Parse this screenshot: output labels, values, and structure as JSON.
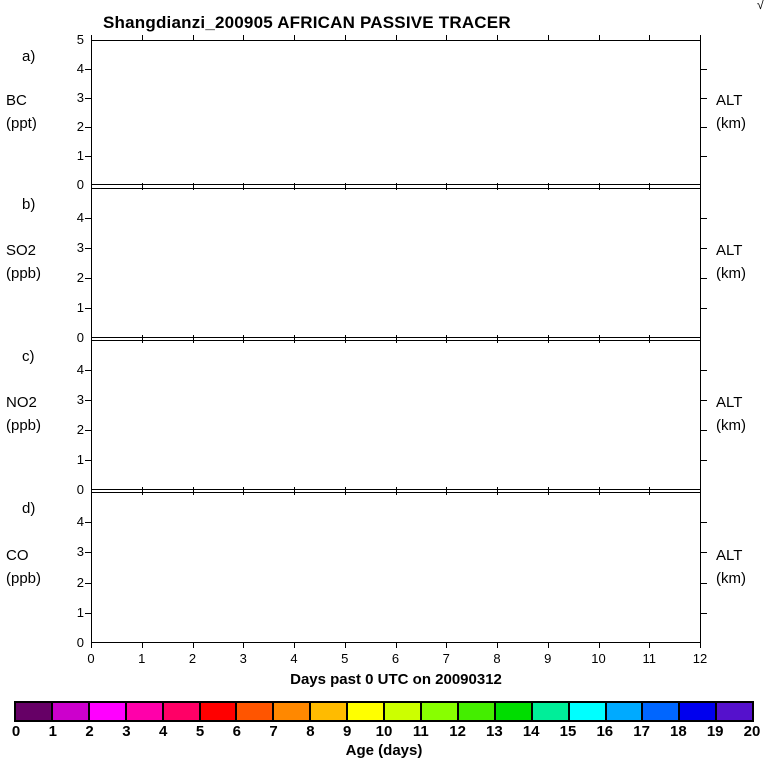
{
  "title": "Shangdianzi_200905 AFRICAN PASSIVE TRACER",
  "corner_glyph": "√",
  "chart_data": {
    "type": "line",
    "xlabel": "Days past 0 UTC on 20090312",
    "x_range": [
      0,
      12
    ],
    "y_range": [
      0,
      5
    ],
    "x_tick_labels": [
      "0",
      "1",
      "2",
      "3",
      "4",
      "5",
      "6",
      "7",
      "8",
      "9",
      "10",
      "11",
      "12"
    ],
    "panels": [
      {
        "tag": "a)",
        "species": "BC",
        "unit": "(ppt)",
        "right_label": "ALT",
        "right_unit": "(km)",
        "y_tick_labels": [
          "0",
          "1",
          "2",
          "3",
          "4",
          "5"
        ],
        "series": []
      },
      {
        "tag": "b)",
        "species": "SO2",
        "unit": "(ppb)",
        "right_label": "ALT",
        "right_unit": "(km)",
        "y_tick_labels": [
          "0",
          "1",
          "2",
          "3",
          "4"
        ],
        "series": []
      },
      {
        "tag": "c)",
        "species": "NO2",
        "unit": "(ppb)",
        "right_label": "ALT",
        "right_unit": "(km)",
        "y_tick_labels": [
          "0",
          "1",
          "2",
          "3",
          "4"
        ],
        "series": []
      },
      {
        "tag": "d)",
        "species": "CO",
        "unit": "(ppb)",
        "right_label": "ALT",
        "right_unit": "(km)",
        "y_tick_labels": [
          "0",
          "1",
          "2",
          "3",
          "4"
        ],
        "series": []
      }
    ]
  },
  "colorbar": {
    "title": "Age (days)",
    "tick_labels": [
      "0",
      "1",
      "2",
      "3",
      "4",
      "5",
      "6",
      "7",
      "8",
      "9",
      "10",
      "11",
      "12",
      "13",
      "14",
      "15",
      "16",
      "17",
      "18",
      "19",
      "20"
    ],
    "colors": [
      "#660066",
      "#CC00CC",
      "#FF00FF",
      "#FF00AA",
      "#FF0066",
      "#FF0000",
      "#FF5500",
      "#FF8800",
      "#FFBB00",
      "#FFFF00",
      "#CCFF00",
      "#88FF00",
      "#44EE00",
      "#00DD00",
      "#00EE99",
      "#00FFFF",
      "#00AAFF",
      "#0066FF",
      "#0000EE",
      "#5511CC"
    ]
  }
}
